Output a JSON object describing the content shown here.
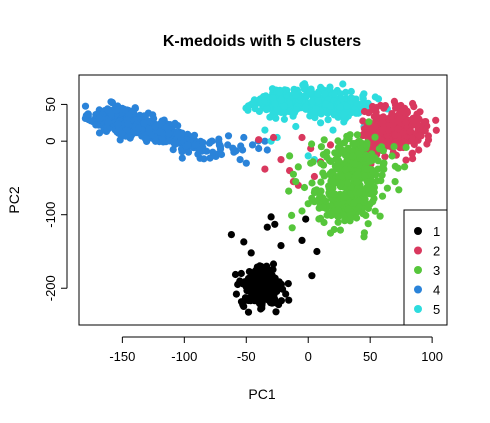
{
  "chart_data": {
    "type": "scatter",
    "title": "K-medoids with 5 clusters",
    "xlabel": "PC1",
    "ylabel": "PC2",
    "xlim": [
      -185,
      112
    ],
    "ylim": [
      -250,
      90
    ],
    "xticks": [
      -150,
      -100,
      -50,
      0,
      50,
      100
    ],
    "yticks": [
      50,
      0,
      -100,
      -200
    ],
    "grid": false,
    "legend": {
      "placement": "bottom-right",
      "entries": [
        "1",
        "2",
        "3",
        "4",
        "5"
      ]
    },
    "series": [
      {
        "label": "1",
        "color": "#000000",
        "blobs": [
          {
            "cx": -37,
            "cy": -200,
            "sx": 8,
            "sy": 14,
            "n": 240
          }
        ],
        "points": [
          [
            -62,
            -127
          ],
          [
            -52,
            -137
          ],
          [
            -46,
            -152
          ],
          [
            -33,
            -117
          ],
          [
            -30,
            -103
          ],
          [
            -27,
            -113
          ],
          [
            -22,
            -142
          ],
          [
            -28,
            -167
          ],
          [
            -5,
            -135
          ],
          [
            -2,
            -106
          ],
          [
            7,
            -150
          ],
          [
            3,
            -183
          ],
          [
            -58,
            -208
          ],
          [
            -54,
            -180
          ],
          [
            -26,
            -232
          ]
        ]
      },
      {
        "label": "2",
        "color": "#d9385e",
        "blobs": [
          {
            "cx": 72,
            "cy": 15,
            "sx": 12,
            "sy": 15,
            "n": 280
          },
          {
            "cx": 55,
            "cy": 5,
            "sx": 9,
            "sy": 12,
            "n": 70
          }
        ],
        "points": [
          [
            -35,
            -38
          ],
          [
            -15,
            -40
          ],
          [
            -12,
            -55
          ],
          [
            -8,
            -60
          ],
          [
            -22,
            -25
          ],
          [
            2,
            -10
          ],
          [
            -5,
            5
          ],
          [
            10,
            -28
          ],
          [
            -28,
            5
          ],
          [
            -40,
            2
          ],
          [
            18,
            -5
          ],
          [
            5,
            -48
          ]
        ]
      },
      {
        "label": "3",
        "color": "#56c63b",
        "blobs": [
          {
            "cx": 38,
            "cy": -45,
            "sx": 13,
            "sy": 26,
            "n": 300
          },
          {
            "cx": 25,
            "cy": -85,
            "sx": 12,
            "sy": 16,
            "n": 110
          }
        ],
        "points": [
          [
            -3,
            -63
          ],
          [
            5,
            -70
          ],
          [
            -12,
            -45
          ],
          [
            -15,
            -20
          ],
          [
            -8,
            -35
          ],
          [
            18,
            -125
          ],
          [
            10,
            -105
          ],
          [
            -5,
            -95
          ],
          [
            0,
            -85
          ],
          [
            12,
            -90
          ],
          [
            45,
            -130
          ],
          [
            58,
            -102
          ],
          [
            -10,
            -55
          ],
          [
            2,
            -30
          ],
          [
            15,
            -15
          ]
        ]
      },
      {
        "label": "4",
        "color": "#2a83d9",
        "blobs": [
          {
            "cx": -158,
            "cy": 32,
            "sx": 9,
            "sy": 8,
            "n": 230
          },
          {
            "cx": -137,
            "cy": 20,
            "sx": 10,
            "sy": 8,
            "n": 180
          },
          {
            "cx": -118,
            "cy": 12,
            "sx": 8,
            "sy": 7,
            "n": 100
          },
          {
            "cx": -100,
            "cy": 0,
            "sx": 8,
            "sy": 7,
            "n": 60
          },
          {
            "cx": -75,
            "cy": -8,
            "sx": 12,
            "sy": 8,
            "n": 30
          }
        ],
        "points": [
          [
            -55,
            -25
          ],
          [
            -50,
            -30
          ],
          [
            -60,
            -15
          ],
          [
            -45,
            -5
          ],
          [
            -52,
            5
          ],
          [
            -40,
            -10
          ],
          [
            -35,
            0
          ],
          [
            -33,
            -12
          ],
          [
            -65,
            -5
          ],
          [
            -85,
            -2
          ]
        ]
      },
      {
        "label": "5",
        "color": "#2ddcde",
        "blobs": [
          {
            "cx": 0,
            "cy": 55,
            "sx": 20,
            "sy": 9,
            "n": 240
          },
          {
            "cx": 30,
            "cy": 45,
            "sx": 13,
            "sy": 8,
            "n": 110
          },
          {
            "cx": -30,
            "cy": 50,
            "sx": 10,
            "sy": 7,
            "n": 70
          }
        ],
        "points": [
          [
            -30,
            0
          ],
          [
            -25,
            5
          ],
          [
            0,
            -20
          ],
          [
            5,
            -25
          ],
          [
            52,
            0
          ],
          [
            50,
            -10
          ],
          [
            10,
            25
          ],
          [
            -10,
            20
          ],
          [
            20,
            15
          ],
          [
            -35,
            15
          ],
          [
            60,
            30
          ],
          [
            45,
            20
          ]
        ]
      }
    ]
  }
}
